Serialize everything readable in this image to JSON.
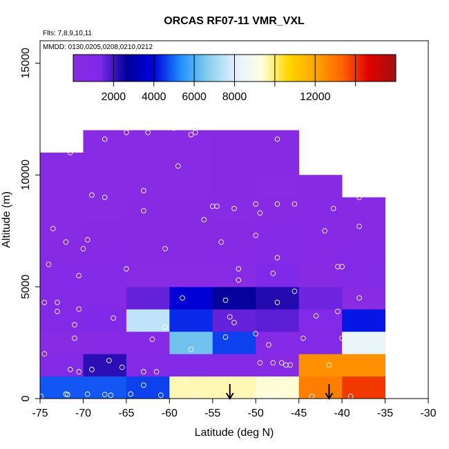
{
  "chart_data": {
    "type": "heatmap",
    "title": "ORCAS RF07-11 VMR_VXL",
    "flights_label": "Flts: 7,8,9,10,11",
    "dates_label": "MMDD: 0130,0205,0208,0210,0212",
    "xlabel": "Latitude (deg N)",
    "ylabel": "Altitude (m)",
    "xlim": [
      -75,
      -30
    ],
    "ylim": [
      0,
      16000
    ],
    "x_ticks": [
      -75,
      -70,
      -65,
      -60,
      -55,
      -50,
      -45,
      -40,
      -35,
      -30
    ],
    "x_tick_labels": [
      "-75",
      "-70",
      "-65",
      "-60",
      "-55",
      "-50",
      "-45",
      "-40",
      "-35",
      "-30"
    ],
    "y_ticks": [
      0,
      5000,
      10000,
      15000
    ],
    "y_tick_labels": [
      "0",
      "5000",
      "10000",
      "15000"
    ],
    "lat_bin_edges": [
      -75,
      -70,
      -65,
      -60,
      -55,
      -50,
      -45,
      -40,
      -35
    ],
    "alt_bin_edges": [
      0,
      1000,
      2000,
      3000,
      4000,
      5000,
      6000,
      7000,
      8000,
      9000,
      10000,
      11000,
      12000
    ],
    "cells_note": "rows: altitude bins bottom->top, columns: latitude bins -75->-35; null = no data",
    "cells": [
      [
        4800,
        4800,
        4600,
        9600,
        9600,
        9400,
        12800,
        13900
      ],
      [
        800,
        2200,
        900,
        800,
        700,
        400,
        12400,
        12400
      ],
      [
        300,
        500,
        500,
        6400,
        4600,
        600,
        800,
        8400
      ],
      [
        900,
        1200,
        7500,
        4400,
        1600,
        1700,
        1000,
        4200
      ],
      [
        800,
        700,
        1600,
        3800,
        2600,
        2300,
        1500,
        200
      ],
      [
        600,
        800,
        300,
        250,
        250,
        1200,
        400,
        800
      ],
      [
        400,
        500,
        400,
        400,
        500,
        600,
        500,
        700
      ],
      [
        300,
        400,
        400,
        350,
        400,
        600,
        500,
        400
      ],
      [
        300,
        300,
        400,
        400,
        300,
        350,
        500,
        400
      ],
      [
        300,
        300,
        300,
        300,
        400,
        300,
        400,
        null
      ],
      [
        300,
        300,
        300,
        300,
        400,
        400,
        null,
        null
      ],
      [
        null,
        300,
        300,
        300,
        400,
        400,
        null,
        null
      ]
    ],
    "colorbar": {
      "min": 0,
      "max": 16000,
      "ticks": [
        2000,
        4000,
        6000,
        8000,
        12000
      ],
      "tick_labels": [
        "2000",
        "4000",
        "6000",
        "8000",
        "12000"
      ],
      "line_positions": [
        2000,
        4000,
        6000,
        8000,
        10000,
        12000,
        14000
      ],
      "colors": [
        "#8a2be2",
        "#7f29ea",
        "#00009a",
        "#0000e0",
        "#1e90ff",
        "#87ceeb",
        "#e0f0ff",
        "#ffffe0",
        "#ffd700",
        "#ffa500",
        "#ff6400",
        "#e00000",
        "#a01010"
      ]
    },
    "samples": [
      [
        -74.9,
        100
      ],
      [
        -72,
        200
      ],
      [
        -71.8,
        180
      ],
      [
        -69.5,
        200
      ],
      [
        -67.5,
        180
      ],
      [
        -66.8,
        150
      ],
      [
        -64.5,
        200
      ],
      [
        -63,
        600
      ],
      [
        -61,
        150
      ],
      [
        -57,
        150
      ],
      [
        -50,
        150
      ],
      [
        -49,
        150
      ],
      [
        -48.5,
        140
      ],
      [
        -47.5,
        150
      ],
      [
        -46.8,
        180
      ],
      [
        -45.5,
        150
      ],
      [
        -43.5,
        100
      ],
      [
        -39,
        100
      ],
      [
        -74.5,
        2000
      ],
      [
        -71.5,
        1300
      ],
      [
        -70.5,
        1200
      ],
      [
        -69,
        1300
      ],
      [
        -67,
        1700
      ],
      [
        -65.5,
        1400
      ],
      [
        -63,
        1200
      ],
      [
        -61.5,
        1200
      ],
      [
        -49.5,
        1600
      ],
      [
        -48,
        1600
      ],
      [
        -47,
        1600
      ],
      [
        -46.5,
        1500
      ],
      [
        -46,
        1500
      ],
      [
        -41.5,
        1500
      ],
      [
        -58,
        700
      ],
      [
        -49.5,
        800
      ],
      [
        -71,
        2700
      ],
      [
        -62,
        2650
      ],
      [
        -57.5,
        2200
      ],
      [
        -53.5,
        2750
      ],
      [
        -50,
        2900
      ],
      [
        -48.5,
        2400
      ],
      [
        -44.5,
        2700
      ],
      [
        -40,
        2700
      ],
      [
        -74.5,
        4300
      ],
      [
        -73,
        4300
      ],
      [
        -70.5,
        4000
      ],
      [
        -71,
        3300
      ],
      [
        -66.5,
        3600
      ],
      [
        -60.5,
        3200
      ],
      [
        -58.5,
        4500
      ],
      [
        -53.5,
        4400
      ],
      [
        -53,
        3650
      ],
      [
        -52.5,
        3400
      ],
      [
        -47.5,
        4300
      ],
      [
        -43,
        3700
      ],
      [
        -40.5,
        3900
      ],
      [
        -38,
        4500
      ],
      [
        -73,
        3900
      ],
      [
        -70.5,
        5500
      ],
      [
        -65,
        5800
      ],
      [
        -52,
        5300
      ],
      [
        -52,
        5800
      ],
      [
        -48,
        5600
      ],
      [
        -45.5,
        4800
      ],
      [
        -40.5,
        5900
      ],
      [
        -74,
        6000
      ],
      [
        -72,
        7000
      ],
      [
        -70,
        6700
      ],
      [
        -69.5,
        7100
      ],
      [
        -60.5,
        6700
      ],
      [
        -54,
        7000
      ],
      [
        -50,
        7300
      ],
      [
        -47.5,
        6300
      ],
      [
        -42,
        7500
      ],
      [
        -40,
        5900
      ],
      [
        -38,
        7700
      ],
      [
        -73.5,
        7600
      ],
      [
        -56,
        8000
      ],
      [
        -55,
        8600
      ],
      [
        -54.5,
        8600
      ],
      [
        -52.5,
        8500
      ],
      [
        -50,
        8700
      ],
      [
        -49.5,
        8300
      ],
      [
        -47.5,
        8700
      ],
      [
        -45.5,
        8700
      ],
      [
        -41,
        8500
      ],
      [
        -38,
        9000
      ],
      [
        -69,
        9100
      ],
      [
        -67.5,
        9000
      ],
      [
        -63,
        9300
      ],
      [
        -63,
        8400
      ],
      [
        -59,
        10400
      ],
      [
        -71.5,
        11000
      ],
      [
        -67.5,
        11600
      ],
      [
        -65,
        11900
      ],
      [
        -62.5,
        11900
      ],
      [
        -59.5,
        12100
      ],
      [
        -57.5,
        11800
      ],
      [
        -57,
        11900
      ],
      [
        -47.5,
        11600
      ]
    ],
    "arrows_latitude": [
      -53,
      -41.5
    ]
  }
}
